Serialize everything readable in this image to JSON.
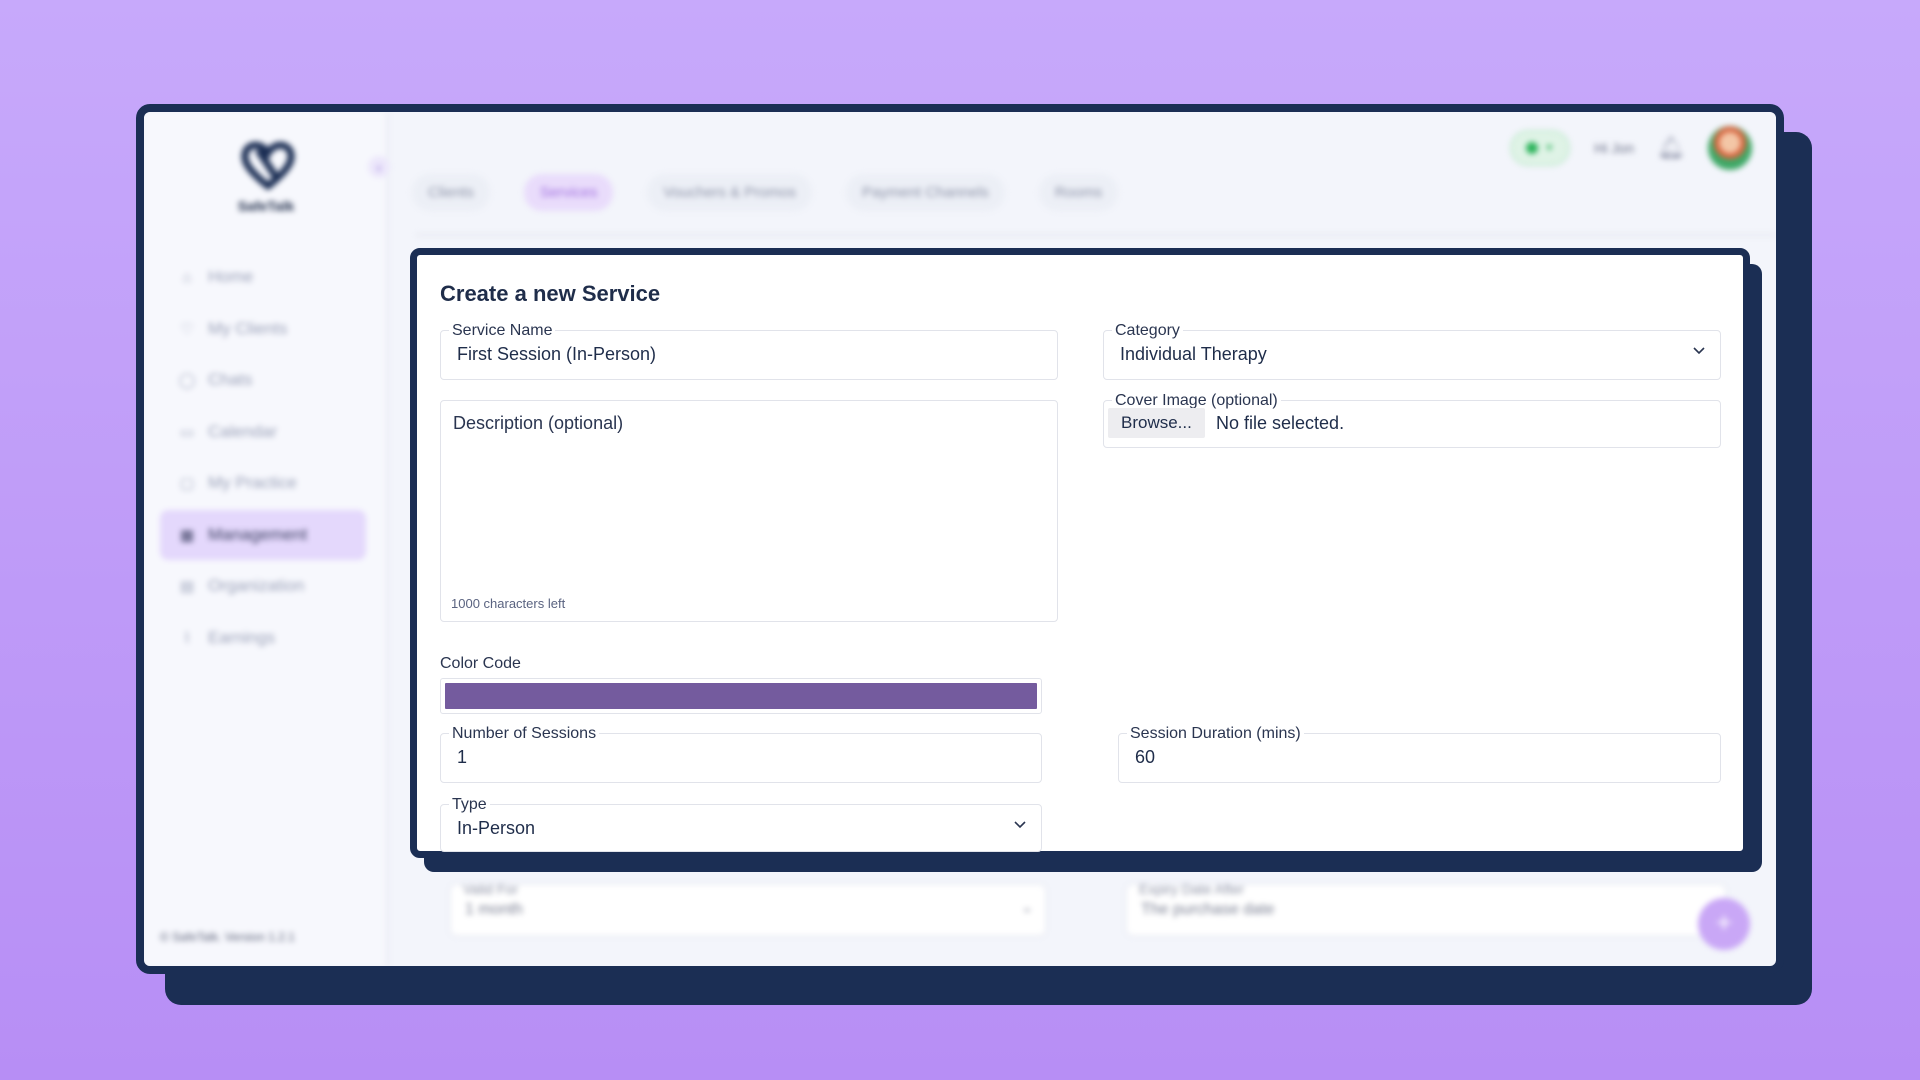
{
  "app": {
    "brand": "SafeTalk",
    "footer": "© SafeTalk. Version 1.2.1",
    "greeting": "Hi Jon"
  },
  "sidebar": {
    "items": [
      {
        "label": "Home",
        "icon": "home-icon"
      },
      {
        "label": "My Clients",
        "icon": "heart-icon"
      },
      {
        "label": "Chats",
        "icon": "chat-icon"
      },
      {
        "label": "Calendar",
        "icon": "calendar-icon"
      },
      {
        "label": "My Practice",
        "icon": "monitor-icon"
      },
      {
        "label": "Management",
        "icon": "grid-icon",
        "active": true
      },
      {
        "label": "Organization",
        "icon": "building-icon"
      },
      {
        "label": "Earnings",
        "icon": "chart-icon"
      }
    ]
  },
  "tabs": [
    {
      "label": "Clients"
    },
    {
      "label": "Services",
      "active": true
    },
    {
      "label": "Vouchers & Promos"
    },
    {
      "label": "Payment Channels"
    },
    {
      "label": "Rooms"
    }
  ],
  "background_form": {
    "valid_for_label": "Valid For",
    "valid_for_value": "1 month",
    "expiry_label": "Expiry Date After",
    "expiry_value": "The purchase date"
  },
  "form": {
    "title": "Create a new Service",
    "service_name": {
      "label": "Service Name",
      "value": "First Session (In-Person)"
    },
    "category": {
      "label": "Category",
      "value": "Individual Therapy"
    },
    "description": {
      "placeholder": "Description (optional)",
      "chars_left": "1000 characters left"
    },
    "cover_image": {
      "label": "Cover Image (optional)",
      "button": "Browse...",
      "status": "No file selected."
    },
    "color_code": {
      "label": "Color Code",
      "value": "#745b9e"
    },
    "sessions": {
      "label": "Number of Sessions",
      "value": "1"
    },
    "duration": {
      "label": "Session Duration (mins)",
      "value": "60"
    },
    "type": {
      "label": "Type",
      "value": "In-Person"
    }
  },
  "colors": {
    "navy": "#1b2e54",
    "accent": "#a06ee0",
    "swatch": "#745b9e"
  }
}
